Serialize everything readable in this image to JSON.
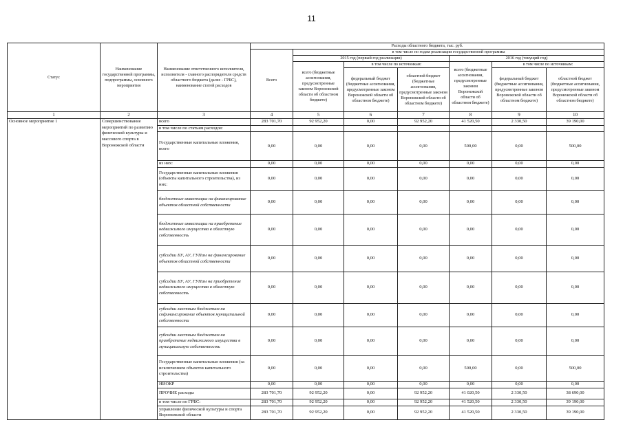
{
  "page_number": "11",
  "header": {
    "status": "Статус",
    "program_name": "Наименование государственной программы, подпрограммы, основного мероприятия",
    "executor_name": "Наименование ответственного исполнителя, исполнителя - главного распорядителя средств областного бюджета (далее - ГРБС), наименование статей расходов",
    "expenses_title": "Расходы областного бюджета, тыс. руб.",
    "total": "Всего",
    "by_years": "в том числе по годам реализации государственной программы",
    "year_2015": "2015 год (первый год реализации)",
    "year_2016": "2016 год (текущий год)",
    "by_sources": "в том числе по источникам:",
    "col_total_year": "всего (бюджетные ассигнования, предусмотренные законом Воронежской области об областном бюджете)",
    "col_federal": "федеральный бюджет (бюджетные ассигнования, предусмотренные законом Воронежской области об областном бюджете)",
    "col_regional": "областной бюджет (бюджетные ассигнования, предусмотренные законом Воронежской области об областном бюджете)",
    "column_numbers": [
      "1",
      "2",
      "3",
      "4",
      "5",
      "6",
      "7",
      "8",
      "9",
      "10"
    ]
  },
  "status": "Основное мероприятие 1",
  "program": "Совершенствование мероприятий по развитию физической культуры и массового спорта в Воронежской области",
  "rows": [
    {
      "label": "всего",
      "italic": false,
      "values": [
        "283 701,70",
        "92 952,20",
        "0,00",
        "92 952,20",
        "41 520,50",
        "2 330,50",
        "39 190,00"
      ]
    },
    {
      "label": "в том числе по статьям расходов:",
      "italic": false,
      "values": [
        "",
        "",
        "",
        "",
        "",
        "",
        ""
      ]
    },
    {
      "label": "Государственные капитальные вложения, всего",
      "italic": false,
      "values": [
        "0,00",
        "0,00",
        "0,00",
        "0,00",
        "500,00",
        "0,00",
        "500,00"
      ]
    },
    {
      "label": "из них:",
      "italic": false,
      "values": [
        "0,00",
        "0,00",
        "0,00",
        "0,00",
        "0,00",
        "0,00",
        "0,00"
      ]
    },
    {
      "label": "Государственные капитальные вложения (объекты капитального строительства), из них:",
      "italic": false,
      "values": [
        "0,00",
        "0,00",
        "0,00",
        "0,00",
        "0,00",
        "0,00",
        "0,00"
      ]
    },
    {
      "label": "бюджетные инвестиции на финансирование объектов областной собственности",
      "italic": true,
      "values": [
        "0,00",
        "0,00",
        "0,00",
        "0,00",
        "0,00",
        "0,00",
        "0,00"
      ]
    },
    {
      "label": "бюджетные инвестиции на приобретение недвижимого имущества в областную собственность",
      "italic": true,
      "values": [
        "0,00",
        "0,00",
        "0,00",
        "0,00",
        "0,00",
        "0,00",
        "0,00"
      ]
    },
    {
      "label": "субсидии БУ, АУ, ГУПам на финансирование объектов областной собственности",
      "italic": true,
      "values": [
        "0,00",
        "0,00",
        "0,00",
        "0,00",
        "0,00",
        "0,00",
        "0,00"
      ]
    },
    {
      "label": "субсидии БУ, АУ, ГУПам на приобретение недвижимого имущества в областную собственность",
      "italic": true,
      "values": [
        "0,00",
        "0,00",
        "0,00",
        "0,00",
        "0,00",
        "0,00",
        "0,00"
      ]
    },
    {
      "label": "субсидии местным бюджетам на софинансирование объектов муниципальной собственности",
      "italic": true,
      "values": [
        "0,00",
        "0,00",
        "0,00",
        "0,00",
        "0,00",
        "0,00",
        "0,00"
      ]
    },
    {
      "label": "субсидии местным бюджетам на приобретение недвижимого имущества в муниципальную собственность",
      "italic": true,
      "values": [
        "0,00",
        "0,00",
        "0,00",
        "0,00",
        "0,00",
        "0,00",
        "0,00"
      ]
    },
    {
      "label": "Государственные капитальные вложения (за исключением объектов капитального строительства)",
      "italic": false,
      "values": [
        "0,00",
        "0,00",
        "0,00",
        "0,00",
        "500,00",
        "0,00",
        "500,00"
      ]
    },
    {
      "label": "НИОКР",
      "italic": false,
      "values": [
        "0,00",
        "0,00",
        "0,00",
        "0,00",
        "0,00",
        "0,00",
        "0,00"
      ]
    },
    {
      "label": "ПРОЧИЕ  расходы",
      "italic": false,
      "values": [
        "283 701,70",
        "92 952,20",
        "0,00",
        "92 952,20",
        "41 020,50",
        "2 330,50",
        "38 690,00"
      ]
    },
    {
      "label": "в том числе по ГРБС:",
      "italic": false,
      "values": [
        "283 701,70",
        "92 952,20",
        "0,00",
        "92 952,20",
        "41 520,50",
        "2 330,50",
        "39 190,00"
      ]
    },
    {
      "label": "управление физической культуры и спорта Воронежской области",
      "italic": false,
      "values": [
        "283 701,70",
        "92 952,20",
        "0,00",
        "92 952,20",
        "41 520,50",
        "2 330,50",
        "39 190,00"
      ]
    }
  ]
}
